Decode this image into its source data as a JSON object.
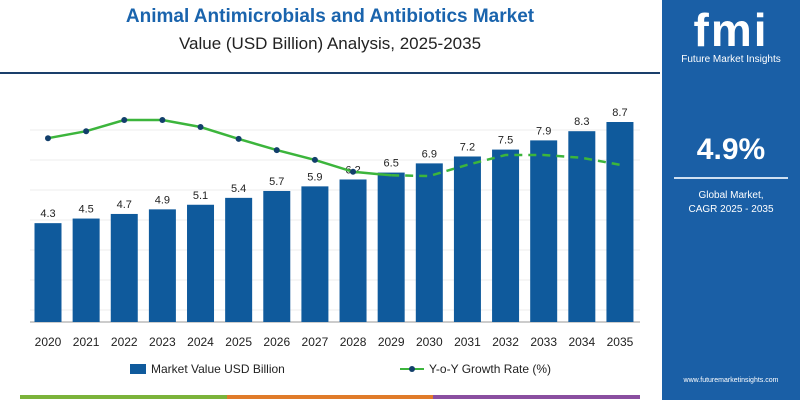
{
  "header": {
    "title": "Animal Antimicrobials and Antibiotics Market",
    "subtitle": "Value (USD Billion) Analysis, 2025-2035"
  },
  "panel": {
    "logo": "fmi",
    "brand": "Future Market Insights",
    "cagr": "4.9%",
    "caption1": "Global Market,",
    "caption2": "CAGR 2025 - 2035",
    "url": "www.futuremarketinsights.com"
  },
  "legend": {
    "bar": "Market Value USD Billion",
    "line": "Y-o-Y Growth Rate (%)"
  },
  "colors": {
    "bar": "#0f5a9c",
    "line": "#3cb53c",
    "marker": "#123f6b",
    "panel": "#1a5fa6"
  },
  "chart_data": {
    "type": "bar+line",
    "categories": [
      "2020",
      "2021",
      "2022",
      "2023",
      "2024",
      "2025",
      "2026",
      "2027",
      "2028",
      "2029",
      "2030",
      "2031",
      "2032",
      "2033",
      "2034",
      "2035"
    ],
    "series": [
      {
        "name": "Market Value USD Billion",
        "type": "bar",
        "values": [
          4.3,
          4.5,
          4.7,
          4.9,
          5.1,
          5.4,
          5.7,
          5.9,
          6.2,
          6.5,
          6.9,
          7.2,
          7.5,
          7.9,
          8.3,
          8.7
        ]
      },
      {
        "name": "Y-o-Y Growth Rate (%)",
        "type": "line",
        "values": [
          4.74,
          4.84,
          5.0,
          5.0,
          4.9,
          4.73,
          4.57,
          4.43,
          4.26,
          4.21,
          4.2,
          4.36,
          4.5,
          4.5,
          4.46,
          4.36
        ],
        "dashed_from": "2029"
      }
    ],
    "ylim": [
      0,
      8.7
    ],
    "grid": true,
    "legend": "bottom"
  }
}
